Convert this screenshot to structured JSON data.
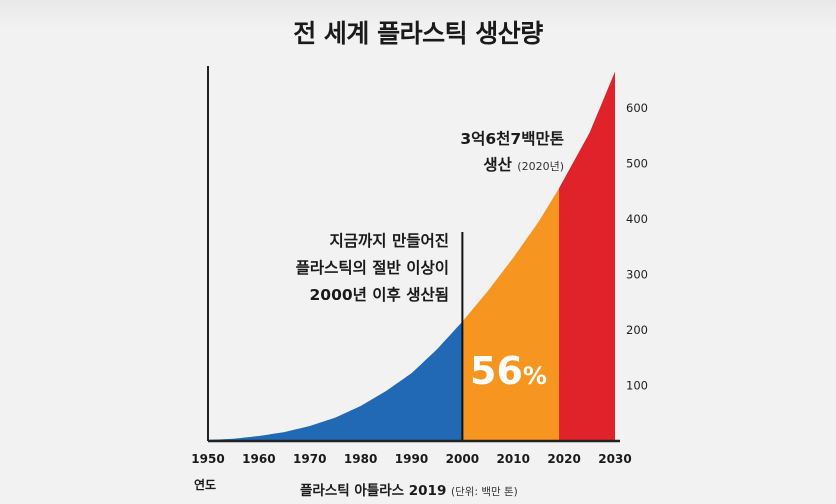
{
  "title": "전 세계 플라스틱 생산량",
  "chart_data": {
    "type": "area",
    "title": "전 세계 플라스틱 생산량",
    "xlabel": "연도",
    "ylabel": "",
    "x_ticks": [
      1950,
      1960,
      1970,
      1980,
      1990,
      2000,
      2010,
      2020,
      2030
    ],
    "y_ticks": [
      100,
      200,
      300,
      400,
      500,
      600
    ],
    "xlim": [
      1950,
      2030
    ],
    "ylim": [
      0,
      650
    ],
    "x": [
      1950,
      1955,
      1960,
      1965,
      1970,
      1975,
      1980,
      1985,
      1990,
      1995,
      2000,
      2005,
      2010,
      2015,
      2019,
      2025,
      2030
    ],
    "y": [
      2,
      4,
      9,
      16,
      27,
      42,
      63,
      90,
      122,
      165,
      215,
      270,
      330,
      395,
      455,
      555,
      665
    ],
    "regions": [
      {
        "from": 1950,
        "to": 2000,
        "color": "#2169b5"
      },
      {
        "from": 2000,
        "to": 2019,
        "color": "#f6951f"
      },
      {
        "from": 2019,
        "to": 2030,
        "color": "#e0222b"
      }
    ],
    "annotations": {
      "mid_lines": [
        "지금까지 만들어진",
        "플라스틱의 절반 이상이",
        "2000년 이후 생산됨"
      ],
      "top_lines": [
        "3억6천7백만톤",
        "생산"
      ],
      "top_year": "(2020년)",
      "percent_value": "56",
      "percent_symbol": "%"
    },
    "source": "플라스틱 아틀라스 2019",
    "unit": "(단위: 백만 톤)"
  }
}
